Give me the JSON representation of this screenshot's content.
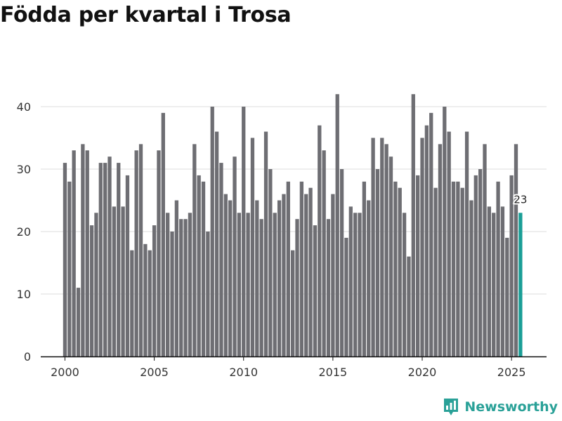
{
  "title": "Födda per kvartal i Trosa",
  "brand": {
    "name": "Newsworthy",
    "icon": "newsworthy-logo-icon"
  },
  "colors": {
    "bar": "#6e6e73",
    "highlight": "#1a9e96",
    "grid": "#dddddd",
    "axis": "#111111",
    "text": "#333333"
  },
  "chart_data": {
    "type": "bar",
    "title": "Födda per kvartal i Trosa",
    "xlabel": "",
    "ylabel": "",
    "ylim": [
      0,
      44
    ],
    "yticks": [
      0,
      10,
      20,
      30,
      40
    ],
    "xticks": [
      2000,
      2005,
      2010,
      2015,
      2020,
      2025
    ],
    "start_year": 2000,
    "periods_per_year": 4,
    "highlight_last": true,
    "last_label": "23",
    "values": [
      31,
      28,
      33,
      11,
      34,
      33,
      21,
      23,
      31,
      31,
      32,
      24,
      31,
      24,
      29,
      17,
      33,
      34,
      18,
      17,
      21,
      33,
      39,
      23,
      20,
      25,
      22,
      22,
      23,
      34,
      29,
      28,
      20,
      40,
      36,
      31,
      26,
      25,
      32,
      23,
      40,
      23,
      35,
      25,
      22,
      36,
      30,
      23,
      25,
      26,
      28,
      17,
      22,
      28,
      26,
      27,
      21,
      37,
      33,
      22,
      26,
      42,
      30,
      19,
      24,
      23,
      23,
      28,
      25,
      35,
      30,
      35,
      34,
      32,
      28,
      27,
      23,
      16,
      42,
      29,
      35,
      37,
      39,
      27,
      34,
      40,
      36,
      28,
      28,
      27,
      36,
      25,
      29,
      30,
      34,
      24,
      23,
      28,
      24,
      19,
      29,
      34,
      23
    ]
  }
}
